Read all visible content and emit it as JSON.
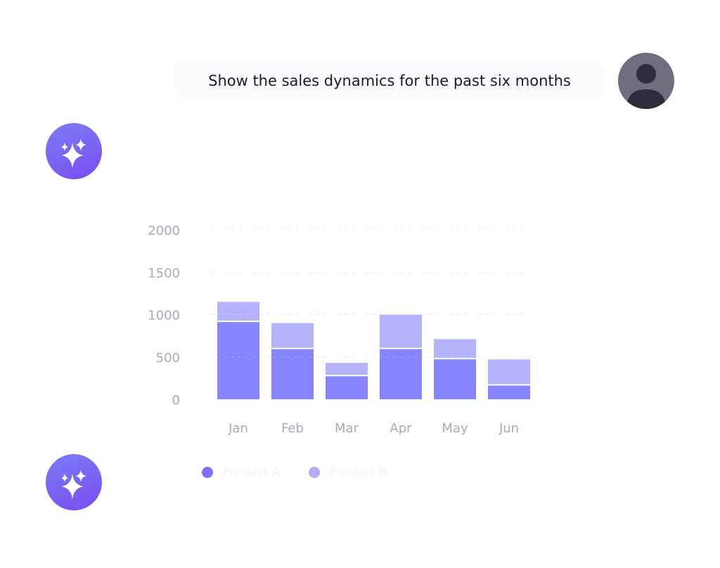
{
  "user_message": "Show the sales dynamics for the past six months",
  "icons": {
    "user": "user-avatar-icon",
    "assistant": "sparkles-icon"
  },
  "colors": {
    "series_a": "#8684fe",
    "series_b": "#b6b3fd",
    "axis_text": "#a9a8bc",
    "assistant": "#7a66f4"
  },
  "chart_data": {
    "type": "bar",
    "stacked": true,
    "categories": [
      "Jan",
      "Feb",
      "Mar",
      "Apr",
      "May",
      "Jun"
    ],
    "series": [
      {
        "name": "Product A",
        "values": [
          920,
          600,
          280,
          600,
          480,
          170
        ]
      },
      {
        "name": "Product B",
        "values": [
          230,
          300,
          150,
          400,
          230,
          300
        ]
      }
    ],
    "yticks": [
      0,
      500,
      1000,
      1500,
      2000
    ],
    "ylim": [
      0,
      2000
    ],
    "grid": "dashed horizontal",
    "legend": "bottom"
  }
}
